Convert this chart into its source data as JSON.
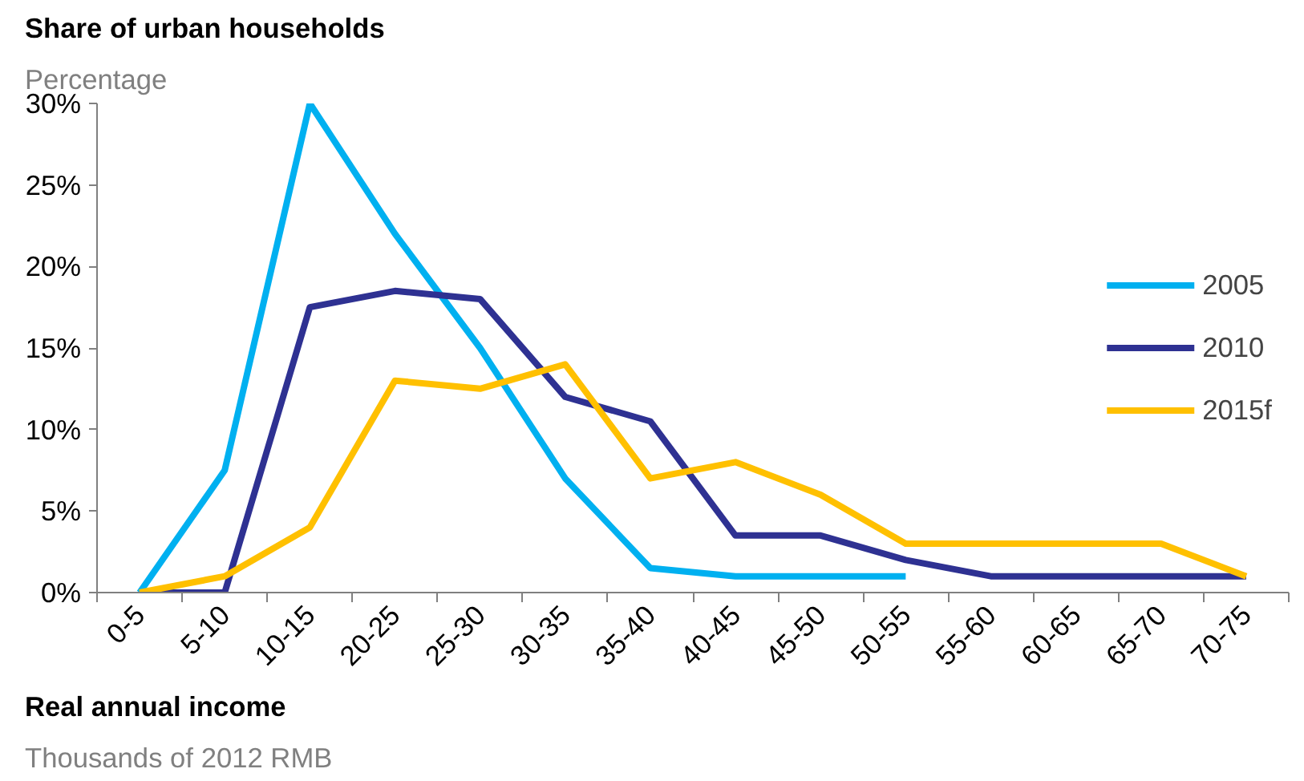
{
  "chart_data": {
    "type": "line",
    "title": "Share of urban households",
    "subtitle": "Percentage",
    "xlabel": "Real annual income",
    "annotations": [
      "Thousands of 2012 RMB"
    ],
    "categories": [
      "0-5",
      "5-10",
      "10-15",
      "20-25",
      "25-30",
      "30-35",
      "35-40",
      "40-45",
      "45-50",
      "50-55",
      "55-60",
      "60-65",
      "65-70",
      "70-75"
    ],
    "series": [
      {
        "name": "2005",
        "color": "#00b0f0",
        "values": [
          0,
          7.5,
          30,
          22,
          15,
          7,
          1.5,
          1,
          1,
          1,
          null,
          null,
          null,
          null
        ]
      },
      {
        "name": "2010",
        "color": "#2e3192",
        "values": [
          0,
          0,
          17.5,
          18.5,
          18,
          12,
          10.5,
          3.5,
          3.5,
          2,
          1,
          1,
          1,
          1
        ]
      },
      {
        "name": "2015f",
        "color": "#ffc000",
        "values": [
          0,
          1,
          4,
          13,
          12.5,
          14,
          7,
          8,
          6,
          3,
          3,
          3,
          3,
          1
        ]
      }
    ],
    "ylim": [
      0,
      30
    ],
    "yticks": [
      {
        "value": 0,
        "label": "0%"
      },
      {
        "value": 5,
        "label": "5%"
      },
      {
        "value": 10,
        "label": "10%"
      },
      {
        "value": 15,
        "label": "15%"
      },
      {
        "value": 20,
        "label": "20%"
      },
      {
        "value": 25,
        "label": "25%"
      },
      {
        "value": 30,
        "label": "30%"
      }
    ],
    "grid": false,
    "legend": "right",
    "line_style": "solid",
    "marker": "none"
  }
}
